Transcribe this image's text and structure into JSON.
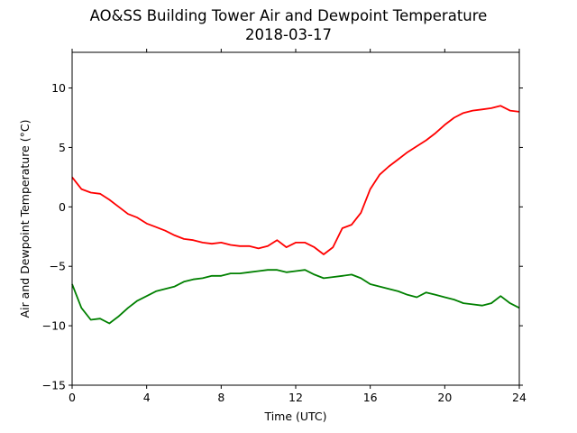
{
  "chart_data": {
    "type": "line",
    "title": "AO&SS Building Tower Air and Dewpoint Temperature",
    "subtitle": "2018-03-17",
    "xlabel": "Time (UTC)",
    "ylabel": "Air and Dewpoint Temperature (°C)",
    "xlim": [
      0,
      24
    ],
    "ylim": [
      -15,
      13
    ],
    "xticks": [
      0,
      4,
      8,
      12,
      16,
      20,
      24
    ],
    "yticks": [
      -15,
      -10,
      -5,
      0,
      5,
      10
    ],
    "grid": false,
    "legend": "none",
    "x": [
      0,
      0.5,
      1,
      1.5,
      2,
      2.5,
      3,
      3.5,
      4,
      4.5,
      5,
      5.5,
      6,
      6.5,
      7,
      7.5,
      8,
      8.5,
      9,
      9.5,
      10,
      10.5,
      11,
      11.5,
      12,
      12.5,
      13,
      13.5,
      14,
      14.5,
      15,
      15.5,
      16,
      16.5,
      17,
      17.5,
      18,
      18.5,
      19,
      19.5,
      20,
      20.5,
      21,
      21.5,
      22,
      22.5,
      23,
      23.5,
      24
    ],
    "series": [
      {
        "color": "#ff0000",
        "values": [
          2.5,
          1.5,
          1.2,
          1.1,
          0.6,
          0.0,
          -0.6,
          -0.9,
          -1.4,
          -1.7,
          -2.0,
          -2.4,
          -2.7,
          -2.8,
          -3.0,
          -3.1,
          -3.0,
          -3.2,
          -3.3,
          -3.3,
          -3.5,
          -3.3,
          -2.8,
          -3.4,
          -3.0,
          -3.0,
          -3.4,
          -4.0,
          -3.4,
          -1.8,
          -1.5,
          -0.5,
          1.5,
          2.7,
          3.4,
          4.0,
          4.6,
          5.1,
          5.6,
          6.2,
          6.9,
          7.5,
          7.9,
          8.1,
          8.2,
          8.3,
          8.5,
          8.1,
          8.0
        ]
      },
      {
        "color": "#008000",
        "values": [
          -6.5,
          -8.5,
          -9.5,
          -9.4,
          -9.8,
          -9.2,
          -8.5,
          -7.9,
          -7.5,
          -7.1,
          -6.9,
          -6.7,
          -6.3,
          -6.1,
          -6.0,
          -5.8,
          -5.8,
          -5.6,
          -5.6,
          -5.5,
          -5.4,
          -5.3,
          -5.3,
          -5.5,
          -5.4,
          -5.3,
          -5.7,
          -6.0,
          -5.9,
          -5.8,
          -5.7,
          -6.0,
          -6.5,
          -6.7,
          -6.9,
          -7.1,
          -7.4,
          -7.6,
          -7.2,
          -7.4,
          -7.6,
          -7.8,
          -8.1,
          -8.2,
          -8.3,
          -8.1,
          -7.5,
          -8.1,
          -8.5
        ]
      }
    ]
  }
}
